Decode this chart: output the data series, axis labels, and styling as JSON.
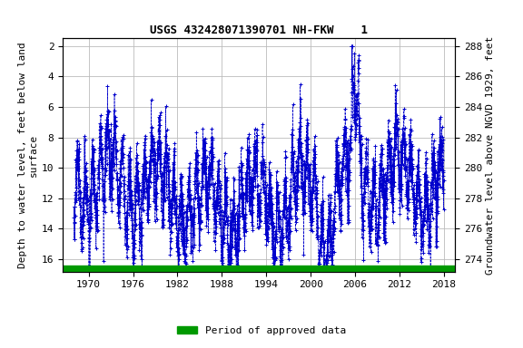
{
  "title": "USGS 432428071390701 NH-FKW    1",
  "ylabel_left": "Depth to water level, feet below land\nsurface",
  "ylabel_right": "Groundwater level above NGVD 1929, feet",
  "ylim_left": [
    16.8,
    1.5
  ],
  "ylim_right": [
    273.2,
    288.5
  ],
  "xlim": [
    1966.5,
    2019.5
  ],
  "xticks": [
    1970,
    1976,
    1982,
    1988,
    1994,
    2000,
    2006,
    2012,
    2018
  ],
  "yticks_left": [
    2,
    4,
    6,
    8,
    10,
    12,
    14,
    16
  ],
  "yticks_right": [
    288,
    286,
    284,
    282,
    280,
    278,
    276,
    274
  ],
  "line_color": "#0000cc",
  "marker": "+",
  "linestyle": "--",
  "bar_color": "#009900",
  "legend_label": "Period of approved data",
  "background_color": "#ffffff",
  "grid_color": "#bbbbbb",
  "title_fontsize": 9,
  "axis_label_fontsize": 8,
  "tick_fontsize": 8,
  "legend_fontsize": 8
}
